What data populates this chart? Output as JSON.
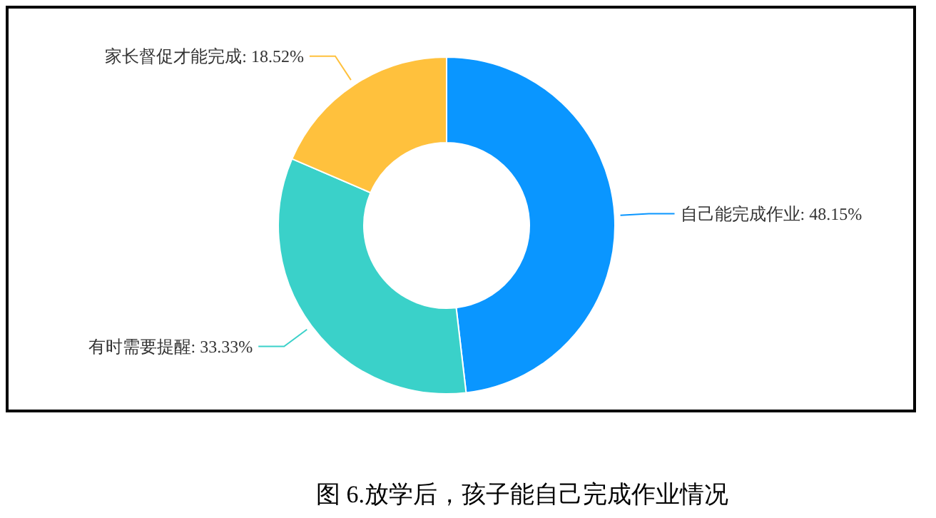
{
  "chart_data": {
    "type": "donut",
    "title": "图 6.放学后，孩子能自己完成作业情况",
    "categories": [
      "自己能完成作业",
      "有时需要提醒",
      "家长督促才能完成"
    ],
    "values": [
      48.15,
      33.33,
      18.52
    ],
    "value_labels": [
      "48.15%",
      "33.33%",
      "18.52%"
    ],
    "colors": [
      "#0a96ff",
      "#3ad1c9",
      "#ffc13d"
    ]
  }
}
